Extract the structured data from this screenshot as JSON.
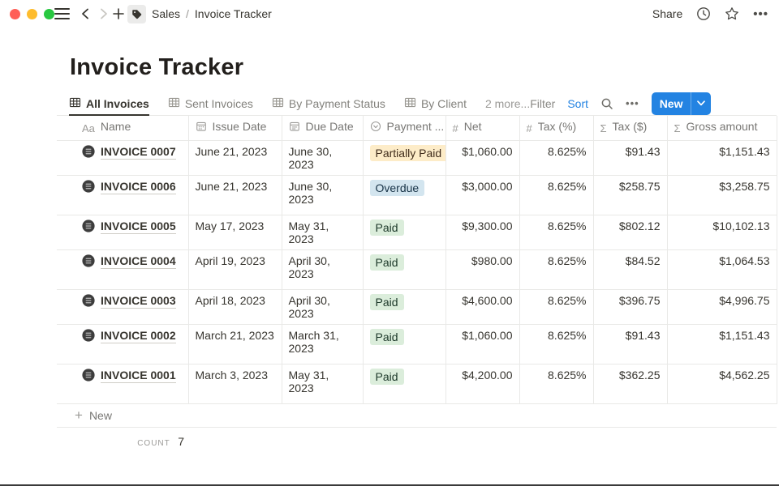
{
  "titlebar": {
    "breadcrumb_section": "Sales",
    "breadcrumb_separator": "/",
    "breadcrumb_page": "Invoice Tracker",
    "share_label": "Share"
  },
  "page": {
    "title": "Invoice Tracker"
  },
  "views": {
    "tabs": [
      {
        "label": "All Invoices",
        "active": true
      },
      {
        "label": "Sent Invoices",
        "active": false
      },
      {
        "label": "By Payment Status",
        "active": false
      },
      {
        "label": "By Client",
        "active": false
      }
    ],
    "more_label": "2 more..."
  },
  "toolbar": {
    "filter_label": "Filter",
    "sort_label": "Sort",
    "new_label": "New"
  },
  "table": {
    "columns": [
      {
        "label": "Name",
        "icon": "text",
        "align": "left"
      },
      {
        "label": "Issue Date",
        "icon": "calendar",
        "align": "left"
      },
      {
        "label": "Due Date",
        "icon": "calendar-lines",
        "align": "left"
      },
      {
        "label": "Payment ...",
        "icon": "select",
        "align": "left"
      },
      {
        "label": "Net",
        "icon": "hash",
        "align": "right"
      },
      {
        "label": "Tax (%)",
        "icon": "hash",
        "align": "right"
      },
      {
        "label": "Tax ($)",
        "icon": "sigma",
        "align": "right"
      },
      {
        "label": "Gross amount",
        "icon": "sigma",
        "align": "right"
      }
    ],
    "rows": [
      {
        "name": "INVOICE 0007",
        "issue": "June 21, 2023",
        "due": "June 30, 2023",
        "status": "Partially Paid",
        "status_color": "yellow",
        "net": "$1,060.00",
        "tax_pct": "8.625%",
        "tax_usd": "$91.43",
        "gross": "$1,151.43",
        "tall": false
      },
      {
        "name": "INVOICE 0006",
        "issue": "June 21, 2023",
        "due": "June 30, 2023",
        "status": "Overdue",
        "status_color": "blue",
        "net": "$3,000.00",
        "tax_pct": "8.625%",
        "tax_usd": "$258.75",
        "gross": "$3,258.75",
        "tall": true
      },
      {
        "name": "INVOICE 0005",
        "issue": "May 17, 2023",
        "due": "May 31, 2023",
        "status": "Paid",
        "status_color": "green",
        "net": "$9,300.00",
        "tax_pct": "8.625%",
        "tax_usd": "$802.12",
        "gross": "$10,102.13",
        "tall": false
      },
      {
        "name": "INVOICE 0004",
        "issue": "April 19, 2023",
        "due": "April 30, 2023",
        "status": "Paid",
        "status_color": "green",
        "net": "$980.00",
        "tax_pct": "8.625%",
        "tax_usd": "$84.52",
        "gross": "$1,064.53",
        "tall": true
      },
      {
        "name": "INVOICE 0003",
        "issue": "April 18, 2023",
        "due": "April 30, 2023",
        "status": "Paid",
        "status_color": "green",
        "net": "$4,600.00",
        "tax_pct": "8.625%",
        "tax_usd": "$396.75",
        "gross": "$4,996.75",
        "tall": false
      },
      {
        "name": "INVOICE 0002",
        "issue": "March 21, 2023",
        "due": "March 31, 2023",
        "status": "Paid",
        "status_color": "green",
        "net": "$1,060.00",
        "tax_pct": "8.625%",
        "tax_usd": "$91.43",
        "gross": "$1,151.43",
        "tall": true
      },
      {
        "name": "INVOICE 0001",
        "issue": "March 3, 2023",
        "due": "May 31, 2023",
        "status": "Paid",
        "status_color": "green",
        "net": "$4,200.00",
        "tax_pct": "8.625%",
        "tax_usd": "$362.25",
        "gross": "$4,562.25",
        "tall": true
      }
    ],
    "new_row_label": "New",
    "footer": {
      "count_label": "COUNT",
      "count_value": "7"
    }
  },
  "theme": {
    "accent_blue": "#2383e2",
    "text_primary": "#37352f",
    "text_secondary": "#787774",
    "divider": "#e9e9e7",
    "badge_yellow_bg": "#fdecc8",
    "badge_yellow_text": "#402c1b",
    "badge_blue_bg": "#d3e5ef",
    "badge_blue_text": "#183347",
    "badge_green_bg": "#dbeddb",
    "badge_green_text": "#1c3829",
    "traffic_red": "#ff5f57",
    "traffic_yellow": "#febc2e",
    "traffic_green": "#28c840"
  }
}
